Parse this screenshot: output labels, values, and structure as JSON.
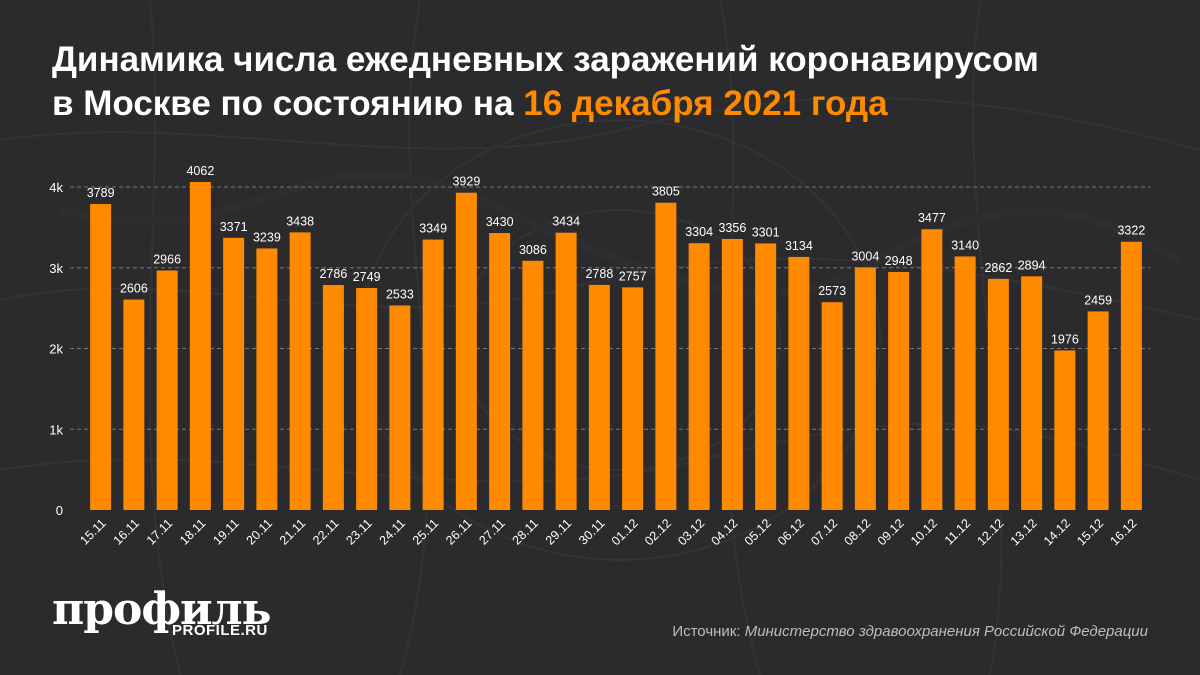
{
  "title": {
    "line1": "Динамика числа ежедневных заражений коронавирусом",
    "line2_prefix": "в Москве по состоянию на ",
    "line2_highlight": "16 декабря 2021 года"
  },
  "colors": {
    "background": "#2b2b2d",
    "bar": "#ff8a00",
    "highlight": "#ff8a00",
    "text": "#ffffff",
    "grid": "#8a8a8a"
  },
  "chart_data": {
    "type": "bar",
    "categories": [
      "15.11",
      "16.11",
      "17.11",
      "18.11",
      "19.11",
      "20.11",
      "21.11",
      "22.11",
      "23.11",
      "24.11",
      "25.11",
      "26.11",
      "27.11",
      "28.11",
      "29.11",
      "30.11",
      "01.12",
      "02.12",
      "03.12",
      "04.12",
      "05.12",
      "06.12",
      "07.12",
      "08.12",
      "09.12",
      "10.12",
      "11.12",
      "12.12",
      "13.12",
      "14.12",
      "15.12",
      "16.12"
    ],
    "values": [
      3789,
      2606,
      2966,
      4062,
      3371,
      3239,
      3438,
      2786,
      2749,
      2533,
      3349,
      3929,
      3430,
      3086,
      3434,
      2788,
      2757,
      3805,
      3304,
      3356,
      3301,
      3134,
      2573,
      3004,
      2948,
      3477,
      3140,
      2862,
      2894,
      1976,
      2459,
      3322
    ],
    "yticks": [
      0,
      1000,
      2000,
      3000,
      4000
    ],
    "ytick_labels": [
      "0",
      "1k",
      "2k",
      "3k",
      "4k"
    ],
    "ylim": [
      0,
      4000
    ],
    "grid": true,
    "title": "Динамика числа ежедневных заражений коронавирусом в Москве по состоянию на 16 декабря 2021 года"
  },
  "branding": {
    "logo": "профиль",
    "site": "PROFILE.RU"
  },
  "source": {
    "label": "Источник:",
    "name": "Министерство здравоохранения Российской Федерации"
  }
}
